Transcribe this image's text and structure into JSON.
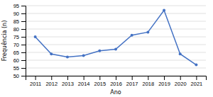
{
  "chart_data": {
    "type": "line",
    "xlabel": "Ano",
    "ylabel": "Frequência (n)",
    "x": [
      2011,
      2012,
      2013,
      2014,
      2015,
      2016,
      2017,
      2018,
      2019,
      2020,
      2021
    ],
    "values": [
      75,
      64,
      62,
      63,
      66,
      67,
      76,
      78,
      92,
      64,
      57
    ],
    "color": "#4472C4",
    "marker": "circle",
    "xlim": [
      2010.4,
      2021.6
    ],
    "xticks": [
      2011,
      2012,
      2013,
      2014,
      2015,
      2016,
      2017,
      2018,
      2019,
      2020,
      2021
    ],
    "ylim": [
      50,
      95
    ],
    "yticks": [
      50,
      55,
      60,
      65,
      70,
      75,
      80,
      85,
      90,
      95
    ],
    "grid": true
  }
}
